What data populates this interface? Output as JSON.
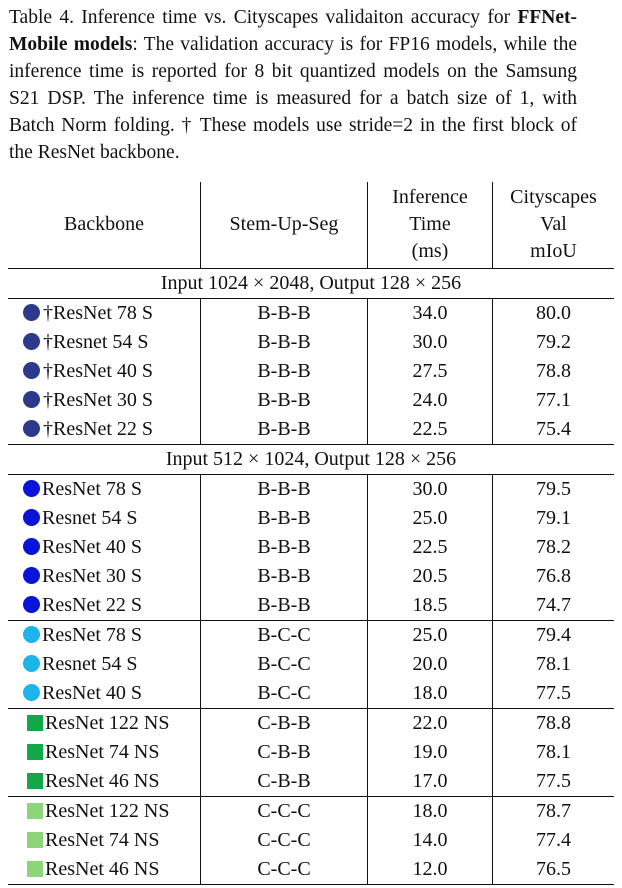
{
  "caption": {
    "line1": "Table 4.  Inference time vs.  Cityscapes validaiton accuracy for",
    "bold_part": "FFNet-Mobile models",
    "rest": ": The validation accuracy is for FP16 models, while the inference time is reported for 8 bit quantized models on the Samsung S21 DSP. The inference time is measured for a batch size of 1, with Batch Norm folding.  † These models use stride=2 in the first block of the ResNet backbone."
  },
  "headers": {
    "backbone": "Backbone",
    "stem": "Stem-Up-Seg",
    "inference": [
      "Inference",
      "Time",
      "(ms)"
    ],
    "cityscapes": [
      "Cityscapes",
      "Val",
      "mIoU"
    ]
  },
  "sections": [
    {
      "title": "Input 1024 × 2048, Output 128 × 256",
      "groups": [
        {
          "marker": {
            "shape": "circle",
            "color": "#2d3a8c"
          },
          "rows": [
            {
              "dagger": "†",
              "backbone": "ResNet 78 S",
              "stem": "B-B-B",
              "time": "34.0",
              "miou": "80.0"
            },
            {
              "dagger": "†",
              "backbone": "Resnet 54 S",
              "stem": "B-B-B",
              "time": "30.0",
              "miou": "79.2"
            },
            {
              "dagger": "†",
              "backbone": "ResNet 40 S",
              "stem": "B-B-B",
              "time": "27.5",
              "miou": "78.8"
            },
            {
              "dagger": "†",
              "backbone": "ResNet 30 S",
              "stem": "B-B-B",
              "time": "24.0",
              "miou": "77.1"
            },
            {
              "dagger": "†",
              "backbone": "ResNet 22 S",
              "stem": "B-B-B",
              "time": "22.5",
              "miou": "75.4"
            }
          ]
        }
      ]
    },
    {
      "title": "Input 512 × 1024, Output 128 × 256",
      "groups": [
        {
          "marker": {
            "shape": "circle",
            "color": "#0a14d8"
          },
          "rows": [
            {
              "dagger": "",
              "backbone": "ResNet 78 S",
              "stem": "B-B-B",
              "time": "30.0",
              "miou": "79.5"
            },
            {
              "dagger": "",
              "backbone": "Resnet 54 S",
              "stem": "B-B-B",
              "time": "25.0",
              "miou": "79.1"
            },
            {
              "dagger": "",
              "backbone": "ResNet 40 S",
              "stem": "B-B-B",
              "time": "22.5",
              "miou": "78.2"
            },
            {
              "dagger": "",
              "backbone": "ResNet 30 S",
              "stem": "B-B-B",
              "time": "20.5",
              "miou": "76.8"
            },
            {
              "dagger": "",
              "backbone": "ResNet 22 S",
              "stem": "B-B-B",
              "time": "18.5",
              "miou": "74.7"
            }
          ]
        },
        {
          "marker": {
            "shape": "circle",
            "color": "#1cb4ea"
          },
          "rows": [
            {
              "dagger": "",
              "backbone": "ResNet 78 S",
              "stem": "B-C-C",
              "time": "25.0",
              "miou": "79.4"
            },
            {
              "dagger": "",
              "backbone": "Resnet 54 S",
              "stem": "B-C-C",
              "time": "20.0",
              "miou": "78.1"
            },
            {
              "dagger": "",
              "backbone": "ResNet 40 S",
              "stem": "B-C-C",
              "time": "18.0",
              "miou": "77.5"
            }
          ]
        },
        {
          "marker": {
            "shape": "square",
            "color": "#12a84a"
          },
          "rows": [
            {
              "dagger": "",
              "backbone": "ResNet 122 NS",
              "stem": "C-B-B",
              "time": "22.0",
              "miou": "78.8"
            },
            {
              "dagger": "",
              "backbone": "ResNet 74 NS",
              "stem": "C-B-B",
              "time": "19.0",
              "miou": "78.1"
            },
            {
              "dagger": "",
              "backbone": "ResNet 46 NS",
              "stem": "C-B-B",
              "time": "17.0",
              "miou": "77.5"
            }
          ]
        },
        {
          "marker": {
            "shape": "square",
            "color": "#8ed47a"
          },
          "rows": [
            {
              "dagger": "",
              "backbone": "ResNet 122 NS",
              "stem": "C-C-C",
              "time": "18.0",
              "miou": "78.7"
            },
            {
              "dagger": "",
              "backbone": "ResNet 74 NS",
              "stem": "C-C-C",
              "time": "14.0",
              "miou": "77.4"
            },
            {
              "dagger": "",
              "backbone": "ResNet 46 NS",
              "stem": "C-C-C",
              "time": "12.0",
              "miou": "76.5"
            }
          ]
        }
      ]
    }
  ]
}
